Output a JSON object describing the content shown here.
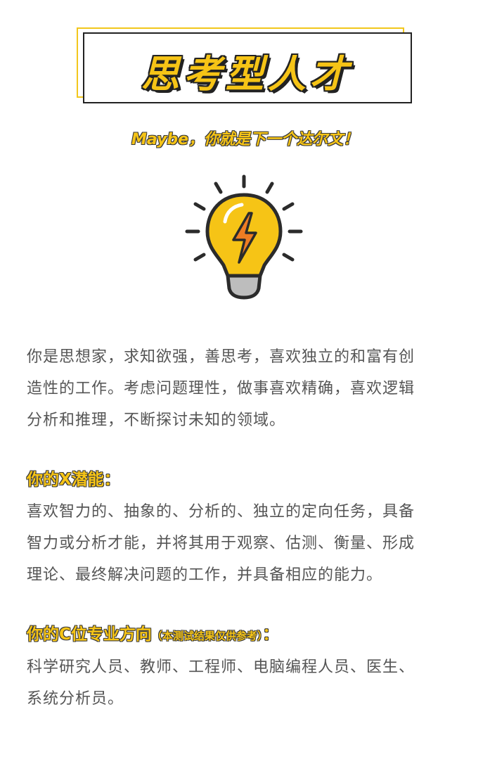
{
  "title": "思考型人才",
  "subtitle": "Maybe，你就是下一个达尔文！",
  "icon": "lightbulb-lightning-icon",
  "colors": {
    "accent": "#f6c416",
    "outline": "#222222",
    "text": "#555555"
  },
  "intro": {
    "line1": "你是思想家，求知欲强，善思考，喜欢独立的和富有创",
    "line2": "造性的工作。考虑问题理性，做事喜欢精确，喜欢逻辑",
    "line3": "分析和推理，不断探讨未知的领域。"
  },
  "potential": {
    "heading": "你的X潜能：",
    "line1": "喜欢智力的、抽象的、分析的、独立的定向任务，具备",
    "line2": "智力或分析才能，并将其用于观察、估测、衡量、形成",
    "line3": "理论、最终解决问题的工作，并具备相应的能力。"
  },
  "careers": {
    "heading": "你的C位专业方向",
    "note": "（本测试结果仅供参考）",
    "colon": "：",
    "line1": "科学研究人员、教师、工程师、电脑编程人员、医生、",
    "line2": "系统分析员。"
  }
}
